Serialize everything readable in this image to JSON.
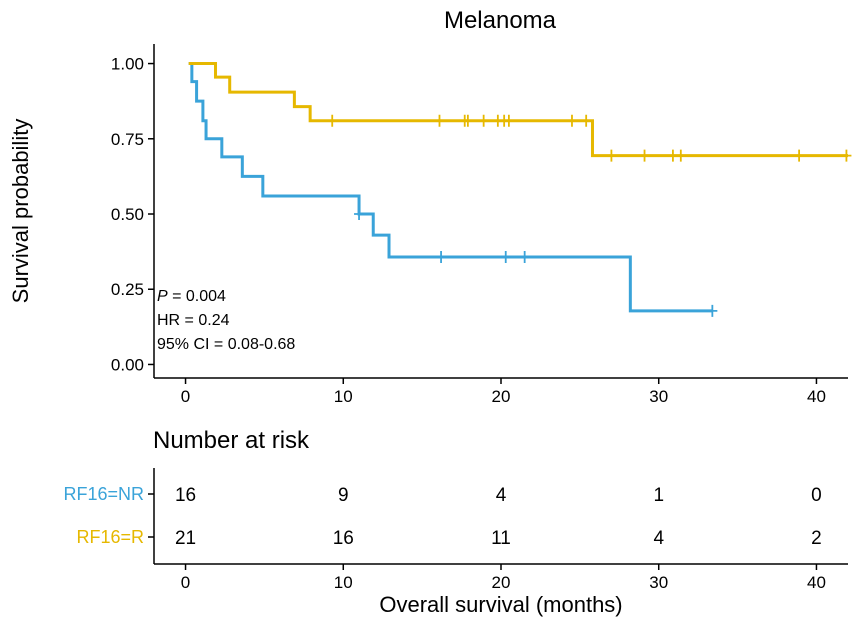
{
  "chart_data": {
    "type": "line",
    "title": "Melanoma",
    "ylabel": "Survival probability",
    "xlabel": "Overall survival (months)",
    "xlim": [
      -2,
      42
    ],
    "ylim": [
      -0.045,
      1.065
    ],
    "yticks": [
      {
        "value": 0.0,
        "label": "0.00"
      },
      {
        "value": 0.25,
        "label": "0.25"
      },
      {
        "value": 0.5,
        "label": "0.50"
      },
      {
        "value": 0.75,
        "label": "0.75"
      },
      {
        "value": 1.0,
        "label": "1.00"
      }
    ],
    "xticks": [
      {
        "value": 0,
        "label": "0"
      },
      {
        "value": 10,
        "label": "10"
      },
      {
        "value": 20,
        "label": "20"
      },
      {
        "value": 30,
        "label": "30"
      },
      {
        "value": 40,
        "label": "40"
      }
    ],
    "series": [
      {
        "name": "RF16=NR",
        "color": "#3aa3d9",
        "steps": [
          [
            0.2,
            1.0
          ],
          [
            0.4,
            0.94
          ],
          [
            0.7,
            0.875
          ],
          [
            1.1,
            0.81
          ],
          [
            1.3,
            0.75
          ],
          [
            2.3,
            0.69
          ],
          [
            3.6,
            0.625
          ],
          [
            4.9,
            0.56
          ],
          [
            11.0,
            0.5
          ],
          [
            11.9,
            0.43
          ],
          [
            12.9,
            0.357
          ],
          [
            28.2,
            0.178
          ],
          [
            33.4,
            0.178
          ]
        ],
        "censors": [
          [
            11.0,
            0.5
          ],
          [
            16.2,
            0.357
          ],
          [
            20.3,
            0.357
          ],
          [
            21.5,
            0.357
          ],
          [
            33.4,
            0.178
          ]
        ]
      },
      {
        "name": "RF16=R",
        "color": "#e6b800",
        "steps": [
          [
            0.2,
            1.0
          ],
          [
            1.9,
            0.955
          ],
          [
            2.8,
            0.905
          ],
          [
            6.9,
            0.857
          ],
          [
            7.9,
            0.81
          ],
          [
            25.8,
            0.694
          ],
          [
            42.0,
            0.694
          ]
        ],
        "censors": [
          [
            9.3,
            0.81
          ],
          [
            16.1,
            0.81
          ],
          [
            17.7,
            0.81
          ],
          [
            17.9,
            0.81
          ],
          [
            18.9,
            0.81
          ],
          [
            19.8,
            0.81
          ],
          [
            20.2,
            0.81
          ],
          [
            20.5,
            0.81
          ],
          [
            24.5,
            0.81
          ],
          [
            25.4,
            0.81
          ],
          [
            27.0,
            0.694
          ],
          [
            29.1,
            0.694
          ],
          [
            30.9,
            0.694
          ],
          [
            31.4,
            0.694
          ],
          [
            38.9,
            0.694
          ],
          [
            41.9,
            0.694
          ]
        ]
      }
    ],
    "annotations": {
      "p_symbol": "P",
      "p_rest": " = 0.004",
      "hr": "HR = 0.24",
      "ci": "95% CI = 0.08-0.68"
    },
    "risk_table": {
      "title": "Number at risk",
      "times": [
        0,
        10,
        20,
        30,
        40
      ],
      "rows": [
        {
          "label": "RF16=NR",
          "color": "#3aa3d9",
          "counts": [
            "16",
            "9",
            "4",
            "1",
            "0"
          ]
        },
        {
          "label": "RF16=R",
          "color": "#e6b800",
          "counts": [
            "21",
            "16",
            "11",
            "4",
            "2"
          ]
        }
      ]
    }
  }
}
